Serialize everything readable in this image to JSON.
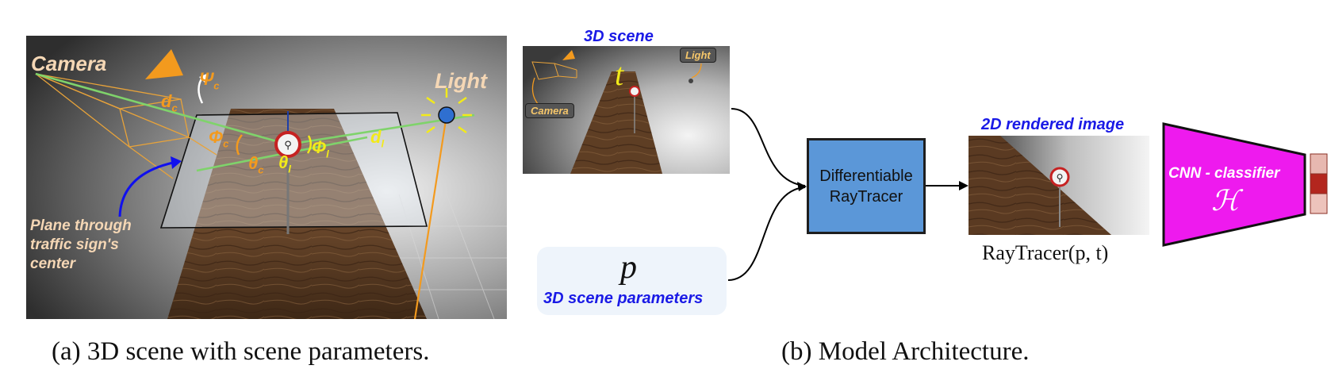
{
  "panel_a": {
    "camera_label": "Camera",
    "light_label": "Light",
    "psi": "Ψ",
    "psi_sub": "c",
    "dc": "d",
    "dc_sub": "c",
    "dl": "d",
    "dl_sub": "l",
    "phi_c": "Φ",
    "phi_c_sub": "c",
    "phi_l": "Φ",
    "phi_l_sub": "l",
    "theta_c": "θ",
    "theta_c_sub": "c",
    "theta_l": "θ",
    "theta_l_sub": "l",
    "plane_label_1": "Plane through",
    "plane_label_2": "traffic sign's",
    "plane_label_3": "center",
    "caption": "(a) 3D scene with scene parameters."
  },
  "panel_b": {
    "scene_title": "3D scene",
    "scene_t": "t",
    "scene_light_tag": "Light",
    "scene_camera_tag": "Camera",
    "param_symbol": "p",
    "param_label": "3D scene parameters",
    "raytracer_line1": "Differentiable",
    "raytracer_line2": "RayTracer",
    "rendered_title": "2D rendered image",
    "rendered_formula": "RayTracer(p, t)",
    "cnn_label": "CNN - classifier",
    "cnn_symbol": "ℋ",
    "caption": "(b) Model Architecture."
  },
  "colors": {
    "orange": "#f39a1e",
    "yellow": "#f2ea1a",
    "blue_text": "#1a1ae6",
    "raytracer_box": "#5b97d8",
    "cnn_magenta": "#ee1aee",
    "green_line": "#7fd36b",
    "peach_label": "#f5d7b5"
  }
}
